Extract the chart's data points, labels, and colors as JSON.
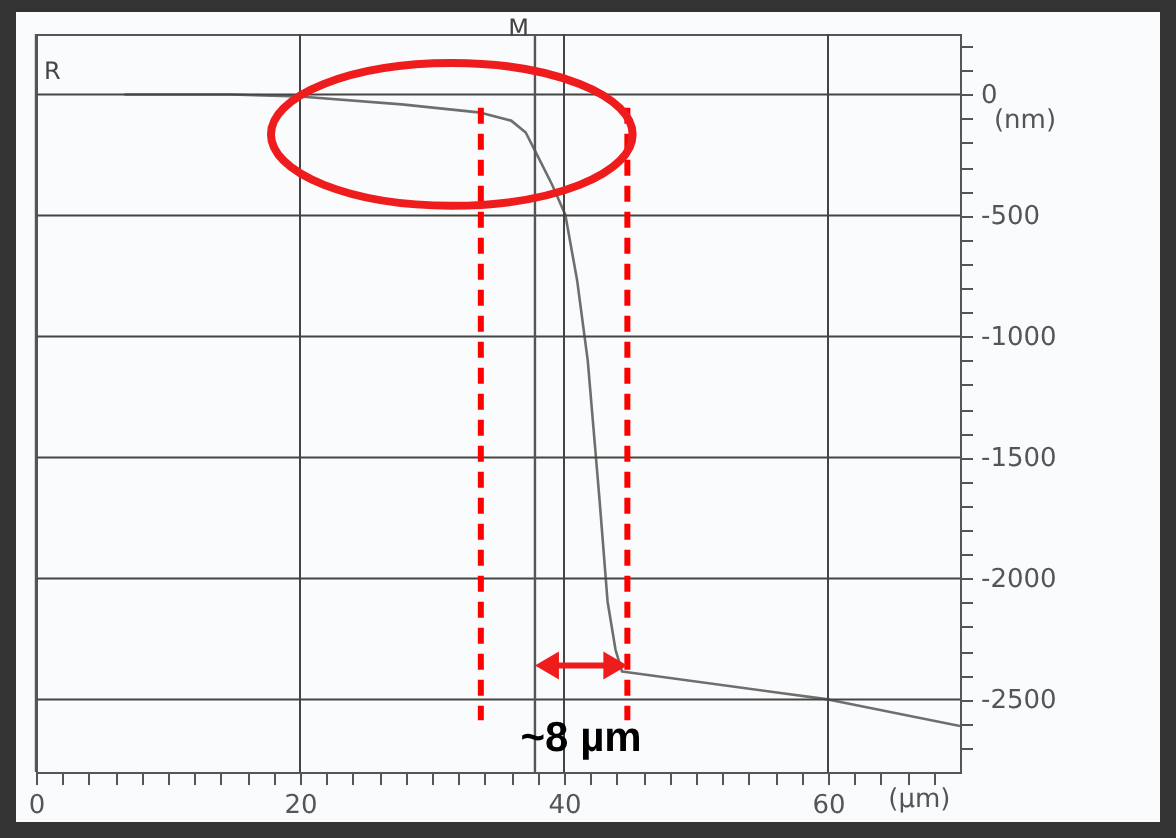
{
  "chart_data": {
    "type": "line",
    "xlabel": "(µm)",
    "ylabel": "(nm)",
    "x": [
      6.7,
      14.7,
      20,
      27.7,
      33.7,
      36,
      37.1,
      37.8,
      39.1,
      40.1,
      41,
      41.8,
      42.7,
      43.3,
      43.9,
      44.4,
      60,
      70
    ],
    "series": [
      {
        "color": "#6e6e6e",
        "values": [
          0,
          0,
          -8,
          -41,
          -75,
          -108,
          -157,
          -232,
          -373,
          -497,
          -770,
          -1100,
          -1680,
          -2095,
          -2294,
          -2385,
          -2500,
          -2610
        ]
      }
    ],
    "xlim": [
      0,
      70
    ],
    "ylim": [
      -2800,
      250
    ],
    "xticks": [
      0,
      {
        "value": 2,
        "label": null
      },
      {
        "value": 4,
        "label": null
      },
      {
        "value": 6,
        "label": null
      },
      {
        "value": 8,
        "label": null
      },
      {
        "value": 10,
        "label": null
      },
      {
        "value": 12,
        "label": null
      },
      {
        "value": 14,
        "label": null
      },
      {
        "value": 16,
        "label": null
      },
      {
        "value": 18,
        "label": null
      },
      20,
      {
        "value": 22,
        "label": null
      },
      {
        "value": 24,
        "label": null
      },
      {
        "value": 26,
        "label": null
      },
      {
        "value": 28,
        "label": null
      },
      {
        "value": 30,
        "label": null
      },
      {
        "value": 32,
        "label": null
      },
      {
        "value": 34,
        "label": null
      },
      {
        "value": 36,
        "label": null
      },
      {
        "value": 38,
        "label": null
      },
      40,
      {
        "value": 42,
        "label": null
      },
      {
        "value": 44,
        "label": null
      },
      {
        "value": 46,
        "label": null
      },
      {
        "value": 48,
        "label": null
      },
      {
        "value": 50,
        "label": null
      },
      {
        "value": 52,
        "label": null
      },
      {
        "value": 54,
        "label": null
      },
      {
        "value": 56,
        "label": null
      },
      {
        "value": 58,
        "label": null
      },
      60,
      {
        "value": 62,
        "label": null
      },
      {
        "value": 64,
        "label": null
      },
      {
        "value": 66,
        "label": null
      },
      {
        "value": 68,
        "label": null
      }
    ],
    "yticks": [
      {
        "value": 200,
        "label": null
      },
      {
        "value": 100,
        "label": null
      },
      0,
      {
        "value": -100,
        "label": null
      },
      {
        "value": -200,
        "label": null
      },
      {
        "value": -300,
        "label": null
      },
      {
        "value": -400,
        "label": null
      },
      -500,
      {
        "value": -600,
        "label": null
      },
      {
        "value": -700,
        "label": null
      },
      {
        "value": -800,
        "label": null
      },
      {
        "value": -900,
        "label": null
      },
      -1000,
      {
        "value": -1100,
        "label": null
      },
      {
        "value": -1200,
        "label": null
      },
      {
        "value": -1300,
        "label": null
      },
      {
        "value": -1400,
        "label": null
      },
      -1500,
      {
        "value": -1600,
        "label": null
      },
      {
        "value": -1700,
        "label": null
      },
      {
        "value": -1800,
        "label": null
      },
      {
        "value": -1900,
        "label": null
      },
      -2000,
      {
        "value": -2100,
        "label": null
      },
      {
        "value": -2200,
        "label": null
      },
      {
        "value": -2300,
        "label": null
      },
      {
        "value": -2400,
        "label": null
      },
      -2500,
      {
        "value": -2600,
        "label": null
      },
      {
        "value": -2700,
        "label": null
      }
    ],
    "grid": true,
    "ref_lines": [
      {
        "axis": "x",
        "value": 0,
        "label": "R",
        "color": "#555555"
      },
      {
        "axis": "x",
        "value": 37.8,
        "label": "M",
        "color": "#555555"
      },
      {
        "axis": "x",
        "value": 33.7,
        "color": "#ff0000",
        "line_style": "dashed"
      },
      {
        "axis": "x",
        "value": 44.8,
        "color": "#ff0000",
        "line_style": "dashed"
      }
    ],
    "annotations": [
      "~8 µm"
    ]
  }
}
